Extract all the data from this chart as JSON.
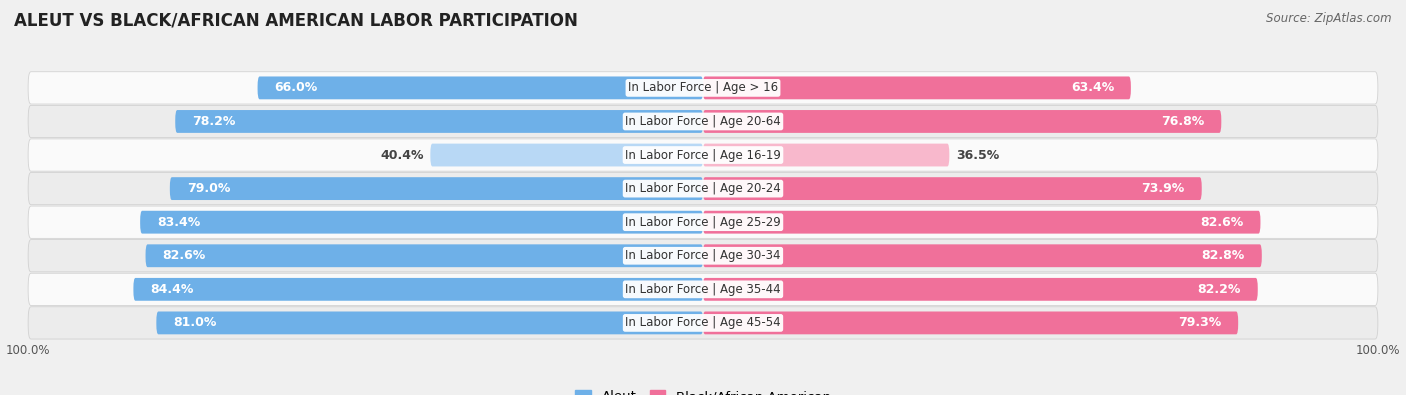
{
  "title": "ALEUT VS BLACK/AFRICAN AMERICAN LABOR PARTICIPATION",
  "source": "Source: ZipAtlas.com",
  "categories": [
    "In Labor Force | Age > 16",
    "In Labor Force | Age 20-64",
    "In Labor Force | Age 16-19",
    "In Labor Force | Age 20-24",
    "In Labor Force | Age 25-29",
    "In Labor Force | Age 30-34",
    "In Labor Force | Age 35-44",
    "In Labor Force | Age 45-54"
  ],
  "aleut_values": [
    66.0,
    78.2,
    40.4,
    79.0,
    83.4,
    82.6,
    84.4,
    81.0
  ],
  "black_values": [
    63.4,
    76.8,
    36.5,
    73.9,
    82.6,
    82.8,
    82.2,
    79.3
  ],
  "aleut_color": "#6EB0E8",
  "aleut_color_light": "#B8D8F5",
  "black_color": "#F0709A",
  "black_color_light": "#F8B8CC",
  "bar_height": 0.68,
  "max_val": 100.0,
  "bg_color": "#f0f0f0",
  "row_bg_even": "#fafafa",
  "row_bg_odd": "#ececec",
  "label_fontsize": 9.0,
  "title_fontsize": 12,
  "legend_fontsize": 9.5,
  "cat_label_fontsize": 8.5
}
